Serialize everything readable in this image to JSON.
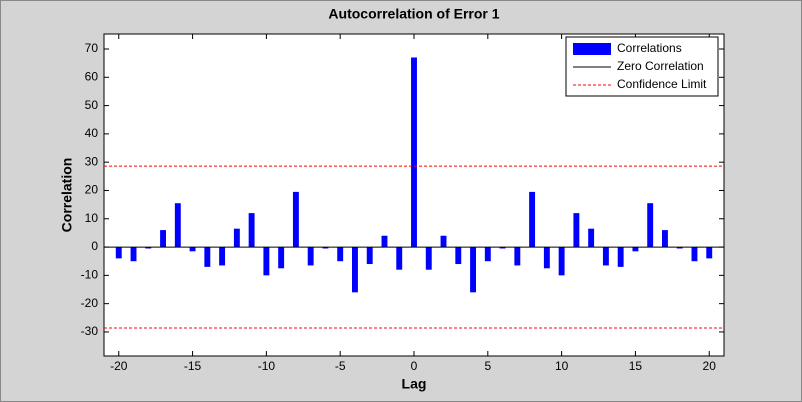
{
  "chart_data": {
    "type": "bar",
    "title": "Autocorrelation of Error 1",
    "x_label": "Lag",
    "y_label": "Correlation",
    "x": [
      -20,
      -19,
      -18,
      -17,
      -16,
      -15,
      -14,
      -13,
      -12,
      -11,
      -10,
      -9,
      -8,
      -7,
      -6,
      -5,
      -4,
      -3,
      -2,
      -1,
      0,
      1,
      2,
      3,
      4,
      5,
      6,
      7,
      8,
      9,
      10,
      11,
      12,
      13,
      14,
      15,
      16,
      17,
      18,
      19,
      20
    ],
    "series": [
      {
        "name": "Correlations",
        "color": "#0000ff",
        "values": [
          -4,
          -5,
          -0.5,
          6,
          15.5,
          -1.5,
          -7,
          -6.5,
          6.5,
          12,
          -10,
          -7.5,
          19.5,
          -6.5,
          -0.5,
          -5,
          -16,
          -6,
          4,
          -8,
          67,
          -8,
          4,
          -6,
          -16,
          -5,
          -0.5,
          -6.5,
          19.5,
          -7.5,
          -10,
          12,
          6.5,
          -6.5,
          -7,
          -1.5,
          15.5,
          6,
          -0.5,
          -5,
          -4
        ]
      }
    ],
    "reference_lines": [
      {
        "name": "Zero Correlation",
        "color": "#000000",
        "values": [
          0
        ]
      },
      {
        "name": "Confidence Limit",
        "color": "#ff0000",
        "values": [
          28.6,
          -28.6
        ]
      }
    ],
    "xlim": [
      -21,
      21
    ],
    "ylim": [
      -38.5,
      75.3
    ],
    "xticks": [
      -20,
      -15,
      -10,
      -5,
      0,
      5,
      10,
      15,
      20
    ],
    "yticks": [
      -30,
      -20,
      -10,
      0,
      10,
      20,
      30,
      40,
      50,
      60,
      70
    ],
    "legend": "top-right"
  }
}
